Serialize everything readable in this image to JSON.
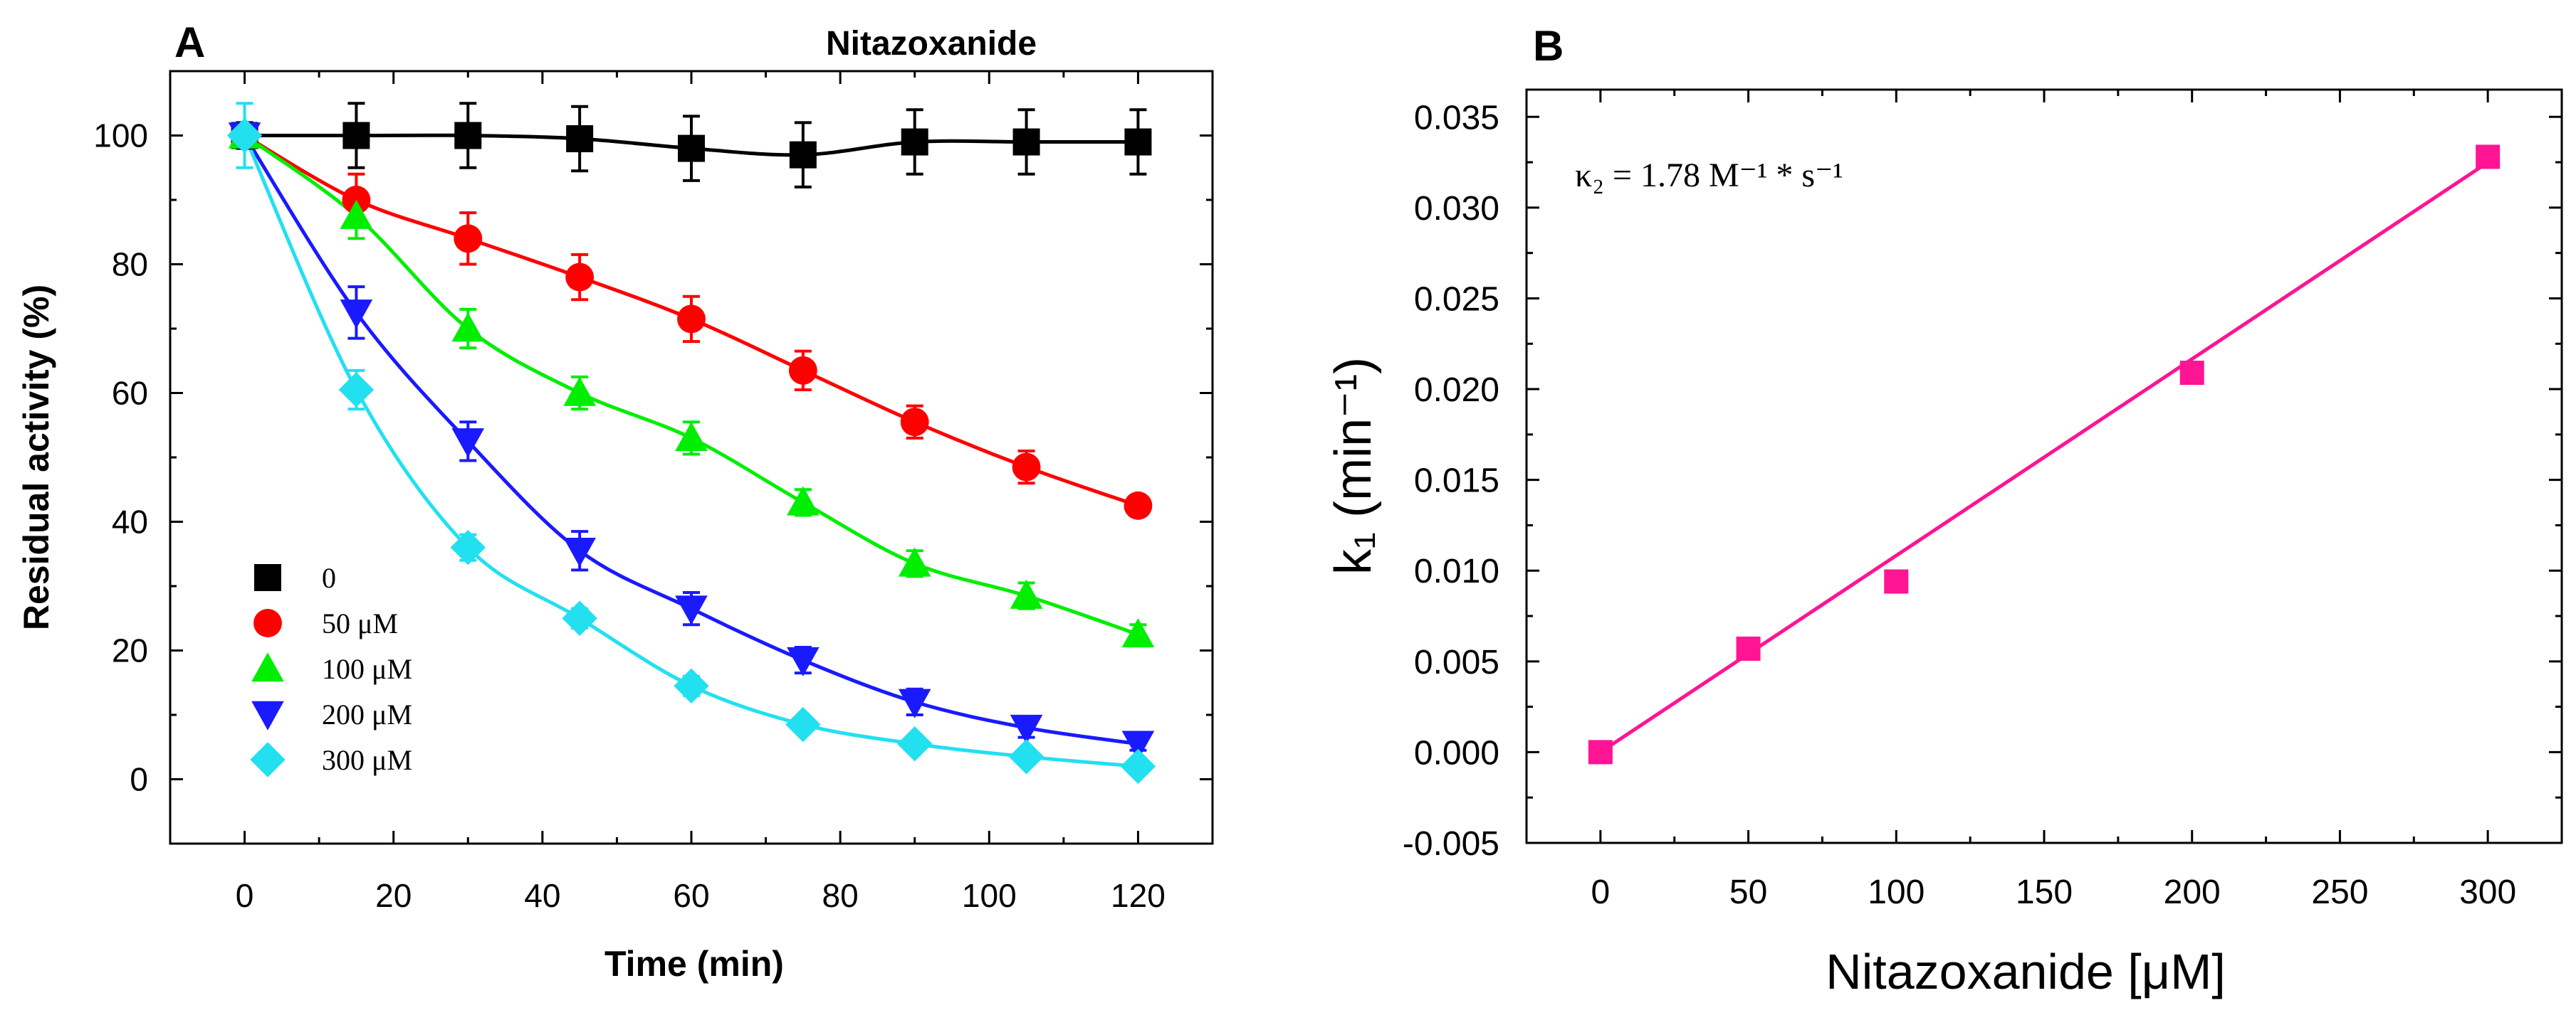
{
  "chart_data": [
    {
      "panel_label": "A",
      "type": "scatter",
      "title": "Nitazoxanide",
      "xlabel": "Time (min)",
      "ylabel": "Residual activity (%)",
      "xlim": [
        -10,
        130
      ],
      "ylim": [
        -10,
        110
      ],
      "xticks": [
        0,
        20,
        40,
        60,
        80,
        100,
        120
      ],
      "xtick_labels": [
        "0",
        "20",
        "40",
        "60",
        "80",
        "100",
        "120"
      ],
      "yticks": [
        0,
        20,
        40,
        60,
        80,
        100
      ],
      "ytick_labels": [
        "0",
        "20",
        "40",
        "60",
        "80",
        "100"
      ],
      "x": [
        0,
        15,
        30,
        45,
        60,
        75,
        90,
        105,
        120
      ],
      "legend_position": "bottom-left",
      "series": [
        {
          "name": "0",
          "marker": "square",
          "color": "#000000",
          "values": [
            100,
            100,
            100,
            99.5,
            98,
            97,
            99,
            99,
            99
          ],
          "errors": [
            2,
            5,
            5,
            5,
            5,
            5,
            5,
            5,
            5
          ]
        },
        {
          "name": "50 μM",
          "marker": "circle",
          "color": "#ff0000",
          "values": [
            100,
            90,
            84,
            78,
            71.5,
            63.5,
            55.5,
            48.5,
            42.5
          ],
          "errors": [
            2,
            4,
            4,
            3.5,
            3.5,
            3,
            2.5,
            2.5,
            1.5
          ]
        },
        {
          "name": "100 μM",
          "marker": "triangle-up",
          "color": "#00ee00",
          "values": [
            100,
            87.5,
            70,
            60,
            53,
            43,
            33.5,
            28.5,
            22.5
          ],
          "errors": [
            2,
            3.5,
            3,
            2.5,
            2.5,
            2,
            2,
            2,
            1.5
          ]
        },
        {
          "name": "200 μM",
          "marker": "triangle-down",
          "color": "#1a1aff",
          "values": [
            100,
            72.5,
            52.5,
            35.5,
            26.5,
            18.5,
            12,
            8,
            5.5
          ],
          "errors": [
            2,
            4,
            3,
            3,
            2.5,
            2,
            2,
            1.5,
            1
          ]
        },
        {
          "name": "300 μM",
          "marker": "diamond",
          "color": "#22e0f0",
          "values": [
            100,
            60.5,
            36,
            25,
            14.5,
            8.5,
            5.5,
            3.5,
            2
          ],
          "errors": [
            5,
            3,
            2,
            1.5,
            1.5,
            1,
            1,
            1,
            1
          ]
        }
      ]
    },
    {
      "panel_label": "B",
      "type": "scatter",
      "xlabel": "Nitazoxanide [μM]",
      "ylabel": "k₁ (min⁻¹)",
      "annotation": "κ₂ = 1.78 M⁻¹ * s⁻¹",
      "xlim": [
        -25,
        325
      ],
      "ylim": [
        -0.005,
        0.0365
      ],
      "xticks": [
        0,
        50,
        100,
        150,
        200,
        250,
        300
      ],
      "xtick_labels": [
        "0",
        "50",
        "100",
        "150",
        "200",
        "250",
        "300"
      ],
      "yticks": [
        -0.005,
        0.0,
        0.005,
        0.01,
        0.015,
        0.02,
        0.025,
        0.03,
        0.035
      ],
      "ytick_labels": [
        "-0.005",
        "0.000",
        "0.005",
        "0.010",
        "0.015",
        "0.020",
        "0.025",
        "0.030",
        "0.035"
      ],
      "series": [
        {
          "name": "k1",
          "marker": "square",
          "color": "#ff1493",
          "x": [
            0,
            50,
            100,
            200,
            300
          ],
          "values": [
            0.0,
            0.0057,
            0.0094,
            0.0209,
            0.0328
          ]
        }
      ],
      "fit": {
        "slope": 0.0001083,
        "intercept": 0.0,
        "color": "#ff1493"
      }
    }
  ]
}
